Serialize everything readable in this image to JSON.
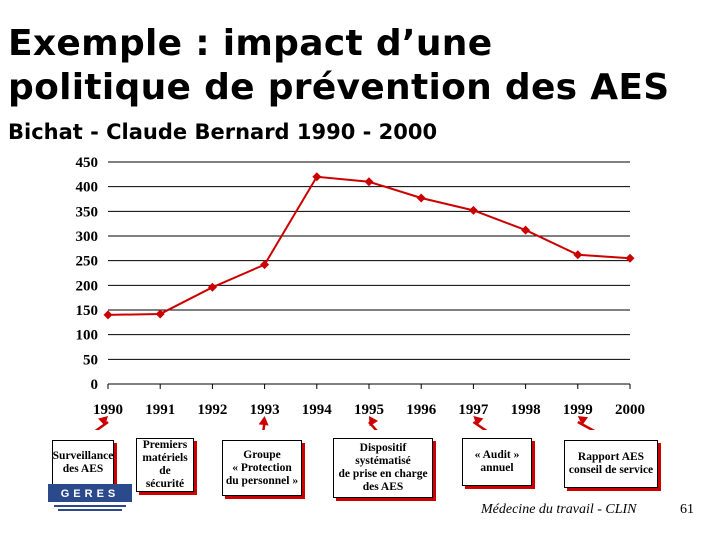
{
  "slide": {
    "title_line1": "Exemple : impact d’une",
    "title_line2": "politique de prévention des AES",
    "footer": "Médecine du travail - CLIN",
    "page_number": "61"
  },
  "chart_data": {
    "type": "line",
    "title": "Bichat - Claude Bernard 1990 - 2000",
    "x": [
      "1990",
      "1991",
      "1992",
      "1993",
      "1994",
      "1995",
      "1996",
      "1997",
      "1998",
      "1999",
      "2000"
    ],
    "series": [
      {
        "name": "AES",
        "values": [
          140,
          142,
          196,
          242,
          420,
          410,
          377,
          352,
          312,
          262,
          255
        ],
        "color": "#cc0000"
      }
    ],
    "ylim": [
      0,
      450
    ],
    "yticks": [
      "0",
      "50",
      "100",
      "150",
      "200",
      "250",
      "300",
      "350",
      "400",
      "450"
    ],
    "grid": true,
    "xlabel": "",
    "ylabel": ""
  },
  "annotations": [
    {
      "label_lines": [
        "Surveillance",
        "des AES"
      ],
      "year": "1990"
    },
    {
      "label_lines": [
        "Premiers",
        "matériels",
        "de sécurité"
      ],
      "year": "1991"
    },
    {
      "label_lines": [
        "Groupe",
        "« Protection",
        "du personnel »"
      ],
      "year": "1993"
    },
    {
      "label_lines": [
        "Dispositif",
        "systématisé",
        "de prise en charge",
        "des AES"
      ],
      "year": "1995"
    },
    {
      "label_lines": [
        "« Audit »",
        "annuel"
      ],
      "year": "1997"
    },
    {
      "label_lines": [
        "Rapport AES",
        "conseil de service"
      ],
      "year": "1999"
    }
  ],
  "logo": {
    "text": "GERES",
    "alt": "GERES logo"
  }
}
